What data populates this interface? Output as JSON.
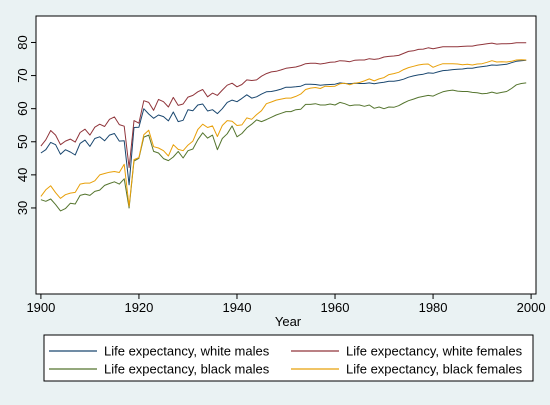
{
  "chart_data": {
    "type": "line",
    "title": "",
    "xlabel": "Year",
    "ylabel": "",
    "xlim": [
      1899,
      2001
    ],
    "ylim": [
      4,
      88
    ],
    "x_ticks": [
      1900,
      1920,
      1940,
      1960,
      1980,
      2000
    ],
    "y_ticks": [
      30,
      40,
      50,
      60,
      70,
      80
    ],
    "grid": false,
    "legend_position": "bottom",
    "series": [
      {
        "name": "Life expectancy, white males",
        "color": "#1a476f",
        "x": [
          1900,
          1901,
          1902,
          1903,
          1904,
          1905,
          1906,
          1907,
          1908,
          1909,
          1910,
          1911,
          1912,
          1913,
          1914,
          1915,
          1916,
          1917,
          1918,
          1919,
          1920,
          1921,
          1922,
          1923,
          1924,
          1925,
          1926,
          1927,
          1928,
          1929,
          1930,
          1931,
          1932,
          1933,
          1934,
          1935,
          1936,
          1937,
          1938,
          1939,
          1940,
          1941,
          1942,
          1943,
          1944,
          1945,
          1946,
          1947,
          1948,
          1949,
          1950,
          1951,
          1952,
          1953,
          1954,
          1955,
          1956,
          1957,
          1958,
          1959,
          1960,
          1961,
          1962,
          1963,
          1964,
          1965,
          1966,
          1967,
          1968,
          1969,
          1970,
          1971,
          1972,
          1973,
          1974,
          1975,
          1976,
          1977,
          1978,
          1979,
          1980,
          1981,
          1982,
          1983,
          1984,
          1985,
          1986,
          1987,
          1988,
          1989,
          1990,
          1991,
          1992,
          1993,
          1994,
          1995,
          1996,
          1997,
          1998,
          1999
        ],
        "y": [
          46.6,
          47.6,
          49.8,
          49.1,
          46.2,
          47.6,
          46.9,
          46.0,
          49.5,
          50.5,
          48.6,
          51.0,
          51.5,
          50.3,
          52.0,
          52.5,
          50.2,
          50.3,
          37.0,
          54.3,
          54.4,
          60.0,
          58.4,
          57.1,
          58.1,
          57.6,
          56.3,
          59.0,
          56.1,
          56.5,
          59.7,
          59.4,
          61.1,
          61.4,
          59.3,
          59.7,
          58.5,
          60.0,
          61.9,
          62.6,
          62.1,
          63.1,
          64.2,
          63.2,
          63.6,
          64.4,
          65.1,
          65.2,
          65.5,
          65.9,
          66.5,
          66.5,
          66.6,
          66.8,
          67.4,
          67.4,
          67.3,
          67.1,
          67.2,
          67.3,
          67.4,
          67.8,
          67.6,
          67.5,
          67.7,
          67.6,
          67.6,
          67.8,
          67.5,
          67.8,
          68.0,
          68.3,
          68.3,
          68.5,
          68.9,
          69.5,
          69.9,
          70.2,
          70.4,
          70.8,
          70.7,
          71.1,
          71.5,
          71.6,
          71.8,
          71.9,
          72.0,
          72.2,
          72.2,
          72.5,
          72.7,
          72.9,
          73.2,
          73.1,
          73.3,
          73.4,
          73.9,
          74.3,
          74.5,
          74.6
        ]
      },
      {
        "name": "Life expectancy, white females",
        "color": "#90353b",
        "x": [
          1900,
          1901,
          1902,
          1903,
          1904,
          1905,
          1906,
          1907,
          1908,
          1909,
          1910,
          1911,
          1912,
          1913,
          1914,
          1915,
          1916,
          1917,
          1918,
          1919,
          1920,
          1921,
          1922,
          1923,
          1924,
          1925,
          1926,
          1927,
          1928,
          1929,
          1930,
          1931,
          1932,
          1933,
          1934,
          1935,
          1936,
          1937,
          1938,
          1939,
          1940,
          1941,
          1942,
          1943,
          1944,
          1945,
          1946,
          1947,
          1948,
          1949,
          1950,
          1951,
          1952,
          1953,
          1954,
          1955,
          1956,
          1957,
          1958,
          1959,
          1960,
          1961,
          1962,
          1963,
          1964,
          1965,
          1966,
          1967,
          1968,
          1969,
          1970,
          1971,
          1972,
          1973,
          1974,
          1975,
          1976,
          1977,
          1978,
          1979,
          1980,
          1981,
          1982,
          1983,
          1984,
          1985,
          1986,
          1987,
          1988,
          1989,
          1990,
          1991,
          1992,
          1993,
          1994,
          1995,
          1996,
          1997,
          1998,
          1999
        ],
        "y": [
          48.7,
          50.6,
          53.4,
          52.0,
          49.1,
          50.2,
          50.8,
          49.9,
          52.8,
          53.8,
          52.0,
          54.4,
          55.3,
          54.6,
          56.8,
          57.5,
          55.2,
          54.7,
          42.2,
          56.4,
          55.6,
          62.4,
          61.9,
          59.5,
          62.8,
          62.1,
          60.5,
          63.4,
          61.0,
          61.4,
          63.5,
          64.0,
          65.1,
          65.8,
          63.6,
          64.7,
          64.0,
          65.6,
          67.1,
          67.7,
          66.6,
          67.3,
          68.7,
          68.5,
          68.7,
          69.8,
          70.6,
          71.1,
          71.3,
          71.7,
          72.2,
          72.4,
          72.6,
          73.0,
          73.6,
          73.7,
          73.7,
          73.5,
          73.7,
          74.0,
          74.1,
          74.5,
          74.4,
          74.2,
          74.6,
          74.7,
          74.7,
          75.1,
          74.9,
          75.1,
          75.6,
          75.8,
          75.9,
          76.1,
          76.7,
          77.3,
          77.5,
          77.9,
          78.0,
          78.4,
          78.1,
          78.4,
          78.7,
          78.7,
          78.7,
          78.7,
          78.8,
          78.9,
          78.9,
          79.2,
          79.4,
          79.6,
          79.8,
          79.5,
          79.6,
          79.6,
          79.7,
          79.9,
          79.9,
          79.9
        ]
      },
      {
        "name": "Life expectancy, black males",
        "color": "#55752f",
        "x": [
          1900,
          1901,
          1902,
          1903,
          1904,
          1905,
          1906,
          1907,
          1908,
          1909,
          1910,
          1911,
          1912,
          1913,
          1914,
          1915,
          1916,
          1917,
          1918,
          1919,
          1920,
          1921,
          1922,
          1923,
          1924,
          1925,
          1926,
          1927,
          1928,
          1929,
          1930,
          1931,
          1932,
          1933,
          1934,
          1935,
          1936,
          1937,
          1938,
          1939,
          1940,
          1941,
          1942,
          1943,
          1944,
          1945,
          1946,
          1947,
          1948,
          1949,
          1950,
          1951,
          1952,
          1953,
          1954,
          1955,
          1956,
          1957,
          1958,
          1959,
          1960,
          1961,
          1962,
          1963,
          1964,
          1965,
          1966,
          1967,
          1968,
          1969,
          1970,
          1971,
          1972,
          1973,
          1974,
          1975,
          1976,
          1977,
          1978,
          1979,
          1980,
          1981,
          1982,
          1983,
          1984,
          1985,
          1986,
          1987,
          1988,
          1989,
          1990,
          1991,
          1992,
          1993,
          1994,
          1995,
          1996,
          1997,
          1998,
          1999
        ],
        "y": [
          32.5,
          32.0,
          32.7,
          31.0,
          29.1,
          29.8,
          31.4,
          31.2,
          33.8,
          34.2,
          33.8,
          35.0,
          35.4,
          36.8,
          37.4,
          37.9,
          37.2,
          38.8,
          30.0,
          44.2,
          45.0,
          51.4,
          52.0,
          47.1,
          46.6,
          44.9,
          44.3,
          45.4,
          47.1,
          45.1,
          47.3,
          47.8,
          50.6,
          52.7,
          51.1,
          52.0,
          47.6,
          51.0,
          52.4,
          54.8,
          51.5,
          52.5,
          54.2,
          55.3,
          56.6,
          56.1,
          56.7,
          57.4,
          58.1,
          58.6,
          59.1,
          59.1,
          59.7,
          59.8,
          61.3,
          61.3,
          61.5,
          61.1,
          61.1,
          61.4,
          61.1,
          61.9,
          61.5,
          60.9,
          61.1,
          61.1,
          60.7,
          61.1,
          60.1,
          60.5,
          60.0,
          60.5,
          60.4,
          60.9,
          61.7,
          62.4,
          62.9,
          63.4,
          63.7,
          64.0,
          63.8,
          64.5,
          65.1,
          65.4,
          65.6,
          65.3,
          65.2,
          65.2,
          64.9,
          64.8,
          64.5,
          64.6,
          65.0,
          64.6,
          64.9,
          65.2,
          66.1,
          67.2,
          67.6,
          67.8
        ]
      },
      {
        "name": "Life expectancy, black females",
        "color": "#e8a00a",
        "x": [
          1900,
          1901,
          1902,
          1903,
          1904,
          1905,
          1906,
          1907,
          1908,
          1909,
          1910,
          1911,
          1912,
          1913,
          1914,
          1915,
          1916,
          1917,
          1918,
          1919,
          1920,
          1921,
          1922,
          1923,
          1924,
          1925,
          1926,
          1927,
          1928,
          1929,
          1930,
          1931,
          1932,
          1933,
          1934,
          1935,
          1936,
          1937,
          1938,
          1939,
          1940,
          1941,
          1942,
          1943,
          1944,
          1945,
          1946,
          1947,
          1948,
          1949,
          1950,
          1951,
          1952,
          1953,
          1954,
          1955,
          1956,
          1957,
          1958,
          1959,
          1960,
          1961,
          1962,
          1963,
          1964,
          1965,
          1966,
          1967,
          1968,
          1969,
          1970,
          1971,
          1972,
          1973,
          1974,
          1975,
          1976,
          1977,
          1978,
          1979,
          1980,
          1981,
          1982,
          1983,
          1984,
          1985,
          1986,
          1987,
          1988,
          1989,
          1990,
          1991,
          1992,
          1993,
          1994,
          1995,
          1996,
          1997,
          1998,
          1999
        ],
        "y": [
          33.5,
          35.5,
          36.7,
          34.6,
          32.9,
          34.0,
          34.5,
          34.7,
          37.2,
          37.5,
          37.5,
          38.2,
          40.0,
          40.4,
          40.8,
          41.0,
          40.7,
          43.2,
          30.5,
          44.6,
          45.2,
          52.1,
          53.5,
          48.5,
          48.1,
          47.3,
          45.7,
          49.1,
          47.7,
          47.3,
          49.0,
          50.2,
          53.7,
          55.3,
          54.3,
          54.8,
          51.6,
          54.9,
          56.4,
          56.2,
          54.9,
          55.1,
          57.2,
          56.8,
          58.2,
          59.4,
          61.5,
          62.0,
          62.6,
          62.9,
          63.2,
          63.2,
          63.7,
          64.4,
          65.8,
          66.2,
          66.4,
          66.1,
          66.8,
          66.7,
          66.8,
          67.5,
          67.7,
          67.2,
          67.7,
          67.9,
          68.4,
          69.0,
          68.4,
          69.0,
          69.4,
          70.3,
          70.6,
          71.0,
          71.8,
          72.4,
          72.8,
          73.2,
          73.4,
          73.5,
          72.5,
          73.1,
          73.6,
          73.6,
          73.6,
          73.5,
          73.3,
          73.4,
          73.2,
          73.5,
          73.6,
          74.0,
          74.5,
          74.1,
          74.2,
          74.1,
          74.3,
          74.7,
          74.8,
          74.7
        ]
      }
    ]
  }
}
